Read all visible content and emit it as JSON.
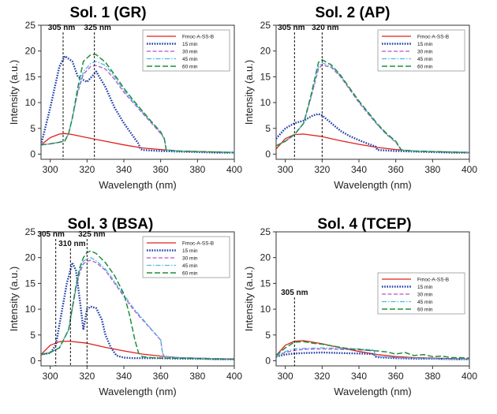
{
  "figure": {
    "colors": {
      "Fmoc-A-SS-B": "#e0201b",
      "15 min": "#1f3fa8",
      "30 min": "#b455c8",
      "45 min": "#4fb7e8",
      "60 min": "#1f8f3a"
    }
  },
  "chart_data": [
    {
      "type": "line",
      "title": "Sol. 1 (GR)",
      "xlabel": "Wavelength (nm)",
      "ylabel": "Intensity (a.u.)",
      "xlim": [
        295,
        400
      ],
      "ylim": [
        -1,
        25
      ],
      "xticks": [
        300,
        320,
        340,
        360,
        380,
        400
      ],
      "yticks": [
        0,
        5,
        10,
        15,
        20,
        25
      ],
      "legend": "top-right",
      "annotations": [
        {
          "x": 307,
          "text": "305 nm"
        },
        {
          "x": 324,
          "text": "325 nm"
        }
      ],
      "series": [
        {
          "name": "Fmoc-A-SS-B",
          "x": [
            295,
            300,
            305,
            308,
            312,
            320,
            330,
            340,
            350,
            360,
            370,
            380,
            390,
            400
          ],
          "y": [
            1.8,
            3.2,
            3.9,
            4.0,
            3.8,
            3.2,
            2.5,
            1.8,
            1.2,
            0.9,
            0.6,
            0.5,
            0.4,
            0.3
          ]
        },
        {
          "name": "15 min",
          "x": [
            295,
            300,
            305,
            308,
            312,
            315,
            320,
            325,
            330,
            335,
            340,
            345,
            348,
            349,
            350,
            360,
            370,
            380,
            390,
            400
          ],
          "y": [
            1.8,
            9,
            17,
            19,
            18,
            15,
            14,
            16,
            13,
            9,
            6,
            3.5,
            2,
            1,
            0.8,
            0.6,
            0.5,
            0.4,
            0.3,
            0.3
          ]
        },
        {
          "name": "30 min",
          "x": [
            295,
            300,
            305,
            308,
            310,
            312,
            315,
            318,
            322,
            325,
            330,
            335,
            340,
            345,
            350,
            355,
            360,
            362,
            363,
            370,
            380,
            390,
            400
          ],
          "y": [
            1.8,
            2,
            2.3,
            2.6,
            4,
            7,
            12,
            15.5,
            17,
            17.2,
            16.5,
            14.5,
            12,
            10,
            8,
            6,
            4,
            3,
            0.8,
            0.6,
            0.5,
            0.4,
            0.3
          ]
        },
        {
          "name": "45 min",
          "x": [
            295,
            300,
            305,
            308,
            310,
            312,
            315,
            318,
            322,
            325,
            330,
            335,
            340,
            345,
            350,
            355,
            360,
            362,
            363,
            370,
            380,
            390,
            400
          ],
          "y": [
            1.8,
            2,
            2.3,
            2.6,
            4,
            7,
            12.3,
            16,
            17.6,
            18,
            17.2,
            15,
            12.4,
            10.2,
            8.2,
            6.2,
            4.2,
            3,
            0.8,
            0.6,
            0.5,
            0.4,
            0.3
          ]
        },
        {
          "name": "60 min",
          "x": [
            295,
            300,
            305,
            308,
            310,
            312,
            315,
            318,
            322,
            325,
            330,
            335,
            340,
            345,
            350,
            355,
            360,
            362,
            363,
            370,
            380,
            390,
            400
          ],
          "y": [
            1.8,
            2,
            2.3,
            2.6,
            4,
            7,
            13,
            18,
            19.3,
            19.3,
            17.8,
            15.4,
            12.8,
            10.5,
            8.4,
            6.3,
            4.3,
            3,
            0.8,
            0.6,
            0.5,
            0.4,
            0.3
          ]
        }
      ]
    },
    {
      "type": "line",
      "title": "Sol. 2 (AP)",
      "xlabel": "Wavelength (nm)",
      "ylabel": "Intensity (a.u.)",
      "xlim": [
        295,
        400
      ],
      "ylim": [
        -1,
        25
      ],
      "xticks": [
        300,
        320,
        340,
        360,
        380,
        400
      ],
      "yticks": [
        0,
        5,
        10,
        15,
        20,
        25
      ],
      "legend": "top-right",
      "annotations": [
        {
          "x": 305,
          "text": "305 nm"
        },
        {
          "x": 320,
          "text": "320 nm"
        }
      ],
      "series": [
        {
          "name": "Fmoc-A-SS-B",
          "x": [
            295,
            300,
            305,
            310,
            320,
            330,
            340,
            350,
            360,
            370,
            380,
            390,
            400
          ],
          "y": [
            1.0,
            3.0,
            3.8,
            3.9,
            3.4,
            2.6,
            1.9,
            1.3,
            0.9,
            0.6,
            0.5,
            0.4,
            0.3
          ]
        },
        {
          "name": "15 min",
          "x": [
            295,
            300,
            305,
            310,
            315,
            318,
            320,
            325,
            330,
            335,
            340,
            345,
            349,
            350,
            360,
            370,
            380,
            390,
            400
          ],
          "y": [
            3,
            5,
            6,
            6.5,
            7.5,
            7.8,
            7.5,
            6,
            4.5,
            3.5,
            2.7,
            2,
            1.5,
            0.8,
            0.6,
            0.5,
            0.4,
            0.3,
            0.3
          ]
        },
        {
          "name": "30 min",
          "x": [
            295,
            300,
            305,
            310,
            314,
            318,
            320,
            325,
            330,
            335,
            340,
            345,
            350,
            355,
            360,
            363,
            370,
            380,
            390,
            400
          ],
          "y": [
            1.6,
            2.5,
            3.8,
            6,
            11,
            16.5,
            17.3,
            16.8,
            15,
            12.5,
            10,
            7.8,
            5.7,
            3.8,
            2.3,
            0.8,
            0.6,
            0.5,
            0.4,
            0.3
          ]
        },
        {
          "name": "45 min",
          "x": [
            295,
            300,
            305,
            310,
            314,
            318,
            320,
            325,
            330,
            335,
            340,
            345,
            350,
            355,
            360,
            363,
            370,
            380,
            390,
            400
          ],
          "y": [
            1.6,
            2.5,
            3.8,
            6,
            11.2,
            17,
            17.7,
            17,
            15.2,
            12.7,
            10.2,
            8,
            5.8,
            3.9,
            2.4,
            0.8,
            0.6,
            0.5,
            0.4,
            0.3
          ]
        },
        {
          "name": "60 min",
          "x": [
            295,
            300,
            305,
            310,
            314,
            318,
            320,
            325,
            330,
            335,
            340,
            345,
            350,
            355,
            360,
            363,
            370,
            380,
            390,
            400
          ],
          "y": [
            1.6,
            2.5,
            3.8,
            6,
            11.5,
            17.8,
            18.3,
            17.3,
            15.3,
            12.8,
            10.3,
            8.1,
            5.9,
            4,
            2.5,
            0.8,
            0.6,
            0.5,
            0.4,
            0.3
          ]
        }
      ]
    },
    {
      "type": "line",
      "title": "Sol. 3 (BSA)",
      "xlabel": "Wavelength (nm)",
      "ylabel": "Intensity (a.u.)",
      "xlim": [
        295,
        400
      ],
      "ylim": [
        -1,
        25
      ],
      "xticks": [
        300,
        320,
        340,
        360,
        380,
        400
      ],
      "yticks": [
        0,
        5,
        10,
        15,
        20,
        25
      ],
      "legend": "top-right",
      "annotations": [
        {
          "x": 303,
          "text": "305 nm"
        },
        {
          "x": 311,
          "text": "310 nm"
        },
        {
          "x": 320,
          "text": "325 nm"
        }
      ],
      "series": [
        {
          "name": "Fmoc-A-SS-B",
          "x": [
            295,
            300,
            305,
            310,
            320,
            330,
            340,
            350,
            360,
            370,
            380,
            390,
            400
          ],
          "y": [
            1.2,
            3.0,
            3.7,
            3.8,
            3.4,
            2.6,
            1.9,
            1.3,
            0.9,
            0.6,
            0.5,
            0.4,
            0.3
          ]
        },
        {
          "name": "15 min",
          "x": [
            295,
            300,
            303,
            306,
            309,
            312,
            314,
            316,
            318,
            320,
            322,
            325,
            328,
            330,
            333,
            336,
            340,
            345,
            350,
            360,
            370,
            380,
            390,
            400
          ],
          "y": [
            1.2,
            1.5,
            3,
            9,
            15,
            19,
            17.5,
            12,
            6,
            10,
            10.5,
            10.2,
            8,
            5,
            2.5,
            1,
            0.6,
            0.5,
            0.5,
            0.5,
            0.4,
            0.4,
            0.3,
            0.3
          ]
        },
        {
          "name": "30 min",
          "x": [
            295,
            300,
            305,
            310,
            314,
            316,
            318,
            320,
            322,
            325,
            330,
            335,
            340,
            345,
            350,
            355,
            360,
            361,
            362,
            370,
            380,
            390,
            400
          ],
          "y": [
            1.2,
            1.6,
            2.5,
            6,
            14,
            17,
            18.8,
            19.3,
            19.5,
            19,
            17.5,
            15,
            12.5,
            10,
            8,
            6,
            4,
            1.5,
            0.8,
            0.6,
            0.5,
            0.4,
            0.3
          ]
        },
        {
          "name": "45 min",
          "x": [
            295,
            300,
            305,
            310,
            314,
            316,
            318,
            320,
            322,
            325,
            330,
            335,
            340,
            345,
            350,
            355,
            360,
            361,
            362,
            370,
            380,
            390,
            400
          ],
          "y": [
            1.2,
            1.6,
            2.5,
            6,
            14.3,
            17.5,
            19.3,
            19.8,
            20,
            19.4,
            17.8,
            15.3,
            12.8,
            10.3,
            8.2,
            6.1,
            4.1,
            1.5,
            0.8,
            0.6,
            0.5,
            0.4,
            0.3
          ]
        },
        {
          "name": "60 min",
          "x": [
            295,
            300,
            305,
            310,
            314,
            316,
            318,
            320,
            322,
            325,
            330,
            335,
            340,
            343,
            346,
            348,
            350,
            355,
            360,
            370,
            380,
            390,
            400
          ],
          "y": [
            1.2,
            1.6,
            2.5,
            6,
            14.5,
            18,
            20,
            21,
            21.3,
            20.8,
            19,
            16.5,
            13,
            9,
            4,
            1.5,
            0.8,
            0.6,
            0.5,
            0.5,
            0.4,
            0.3,
            0.3
          ]
        }
      ]
    },
    {
      "type": "line",
      "title": "Sol. 4 (TCEP)",
      "xlabel": "Wavelength (nm)",
      "ylabel": "Intensity (a.u.)",
      "xlim": [
        295,
        400
      ],
      "ylim": [
        -1,
        25
      ],
      "xticks": [
        300,
        320,
        340,
        360,
        380,
        400
      ],
      "yticks": [
        0,
        5,
        10,
        15,
        20,
        25
      ],
      "legend": "center-right",
      "annotations": [
        {
          "x": 305,
          "text": "305 nm"
        }
      ],
      "series": [
        {
          "name": "Fmoc-A-SS-B",
          "x": [
            295,
            300,
            305,
            310,
            320,
            330,
            340,
            350,
            360,
            370,
            380,
            390,
            400
          ],
          "y": [
            1.0,
            3.0,
            3.8,
            3.9,
            3.3,
            2.5,
            1.8,
            1.2,
            0.8,
            0.6,
            0.5,
            0.4,
            0.3
          ]
        },
        {
          "name": "15 min",
          "x": [
            295,
            300,
            305,
            310,
            320,
            330,
            340,
            348,
            349,
            350,
            360,
            370,
            380,
            390,
            400
          ],
          "y": [
            0.8,
            1.2,
            1.4,
            1.5,
            1.6,
            1.5,
            1.4,
            1.3,
            0.8,
            0.7,
            0.5,
            0.4,
            0.4,
            0.3,
            0.3
          ]
        },
        {
          "name": "30 min",
          "x": [
            295,
            300,
            305,
            310,
            320,
            330,
            340,
            348,
            349,
            350,
            360,
            370,
            380,
            390,
            400
          ],
          "y": [
            0.9,
            1.6,
            2.0,
            2.2,
            2.3,
            2.2,
            2.1,
            2.0,
            1.0,
            0.8,
            0.6,
            0.5,
            0.4,
            0.3,
            0.3
          ]
        },
        {
          "name": "45 min",
          "x": [
            295,
            300,
            305,
            310,
            320,
            330,
            340,
            348,
            349,
            350,
            360,
            370,
            380,
            390,
            400
          ],
          "y": [
            0.9,
            1.8,
            2.3,
            2.4,
            2.5,
            2.4,
            2.3,
            2.1,
            1.0,
            0.8,
            0.6,
            0.5,
            0.4,
            0.3,
            0.3
          ]
        },
        {
          "name": "60 min",
          "x": [
            295,
            300,
            305,
            310,
            315,
            320,
            325,
            330,
            335,
            340,
            345,
            350,
            355,
            360,
            365,
            370,
            375,
            380,
            385,
            390,
            395,
            400
          ],
          "y": [
            1.0,
            2.5,
            3.6,
            3.7,
            3.4,
            3.2,
            2.9,
            2.6,
            2.3,
            2.2,
            2.0,
            1.9,
            1.7,
            1.3,
            1.6,
            1.0,
            1.2,
            0.8,
            0.9,
            0.6,
            0.6,
            0.5
          ]
        }
      ]
    }
  ]
}
